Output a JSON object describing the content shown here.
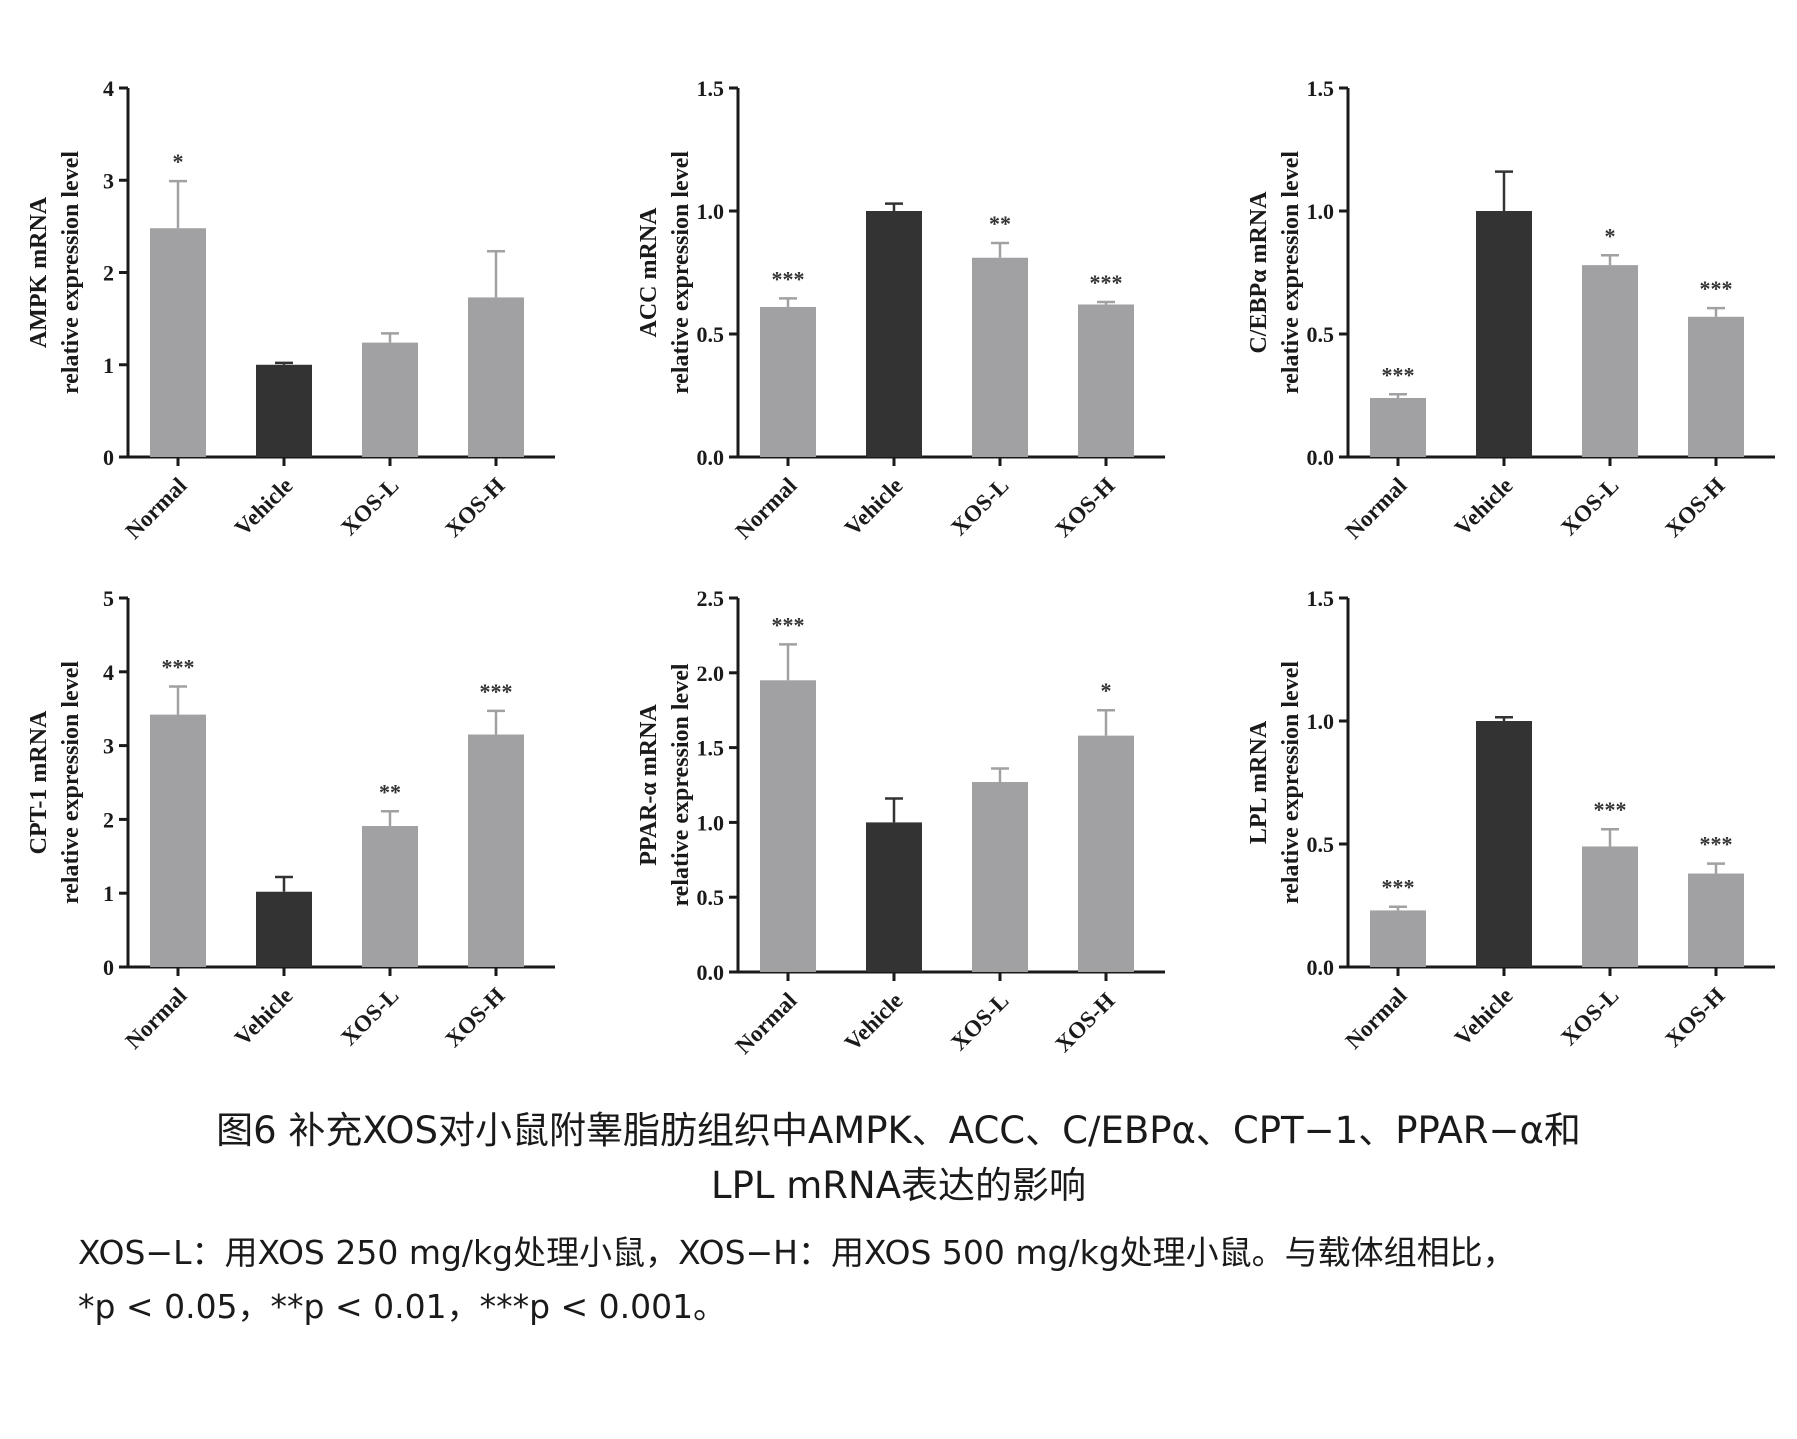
{
  "chart_data": [
    {
      "type": "bar",
      "categories": [
        "Normal",
        "Vehicle",
        "XOS-L",
        "XOS-H"
      ],
      "values": [
        2.48,
        1.0,
        1.24,
        1.73
      ],
      "errors": [
        0.51,
        0.02,
        0.1,
        0.5
      ],
      "significance": [
        "*",
        "",
        "",
        ""
      ],
      "ylabel_line1": "AMPK mRNA",
      "ylabel_line2": "relative expression level",
      "ylim": [
        0,
        4
      ],
      "yticks": [
        "0",
        "1",
        "2",
        "3",
        "4"
      ],
      "colors": [
        "#a1a1a3",
        "#333333",
        "#a1a1a3",
        "#a1a1a3"
      ]
    },
    {
      "type": "bar",
      "categories": [
        "Normal",
        "Vehicle",
        "XOS-L",
        "XOS-H"
      ],
      "values": [
        0.61,
        1.0,
        0.81,
        0.62
      ],
      "errors": [
        0.035,
        0.03,
        0.06,
        0.01
      ],
      "significance": [
        "***",
        "",
        "**",
        "***"
      ],
      "ylabel_line1": "ACC mRNA",
      "ylabel_line2": "relative expression level",
      "ylim": [
        0,
        1.5
      ],
      "yticks": [
        "0.0",
        "0.5",
        "1.0",
        "1.5"
      ],
      "colors": [
        "#a1a1a3",
        "#333333",
        "#a1a1a3",
        "#a1a1a3"
      ]
    },
    {
      "type": "bar",
      "categories": [
        "Normal",
        "Vehicle",
        "XOS-L",
        "XOS-H"
      ],
      "values": [
        0.24,
        1.0,
        0.78,
        0.57
      ],
      "errors": [
        0.015,
        0.16,
        0.04,
        0.035
      ],
      "significance": [
        "***",
        "",
        "*",
        "***"
      ],
      "ylabel_line1": "C/EBPα mRNA",
      "ylabel_line2": "relative expression level",
      "ylim": [
        0,
        1.5
      ],
      "yticks": [
        "0.0",
        "0.5",
        "1.0",
        "1.5"
      ],
      "colors": [
        "#a1a1a3",
        "#333333",
        "#a1a1a3",
        "#a1a1a3"
      ]
    },
    {
      "type": "bar",
      "categories": [
        "Normal",
        "Vehicle",
        "XOS-L",
        "XOS-H"
      ],
      "values": [
        3.42,
        1.02,
        1.91,
        3.15
      ],
      "errors": [
        0.38,
        0.2,
        0.2,
        0.32
      ],
      "significance": [
        "***",
        "",
        "**",
        "***"
      ],
      "ylabel_line1": "CPT-1 mRNA",
      "ylabel_line2": "relative expression level",
      "ylim": [
        0,
        5
      ],
      "yticks": [
        "0",
        "1",
        "2",
        "3",
        "4",
        "5"
      ],
      "colors": [
        "#a1a1a3",
        "#333333",
        "#a1a1a3",
        "#a1a1a3"
      ]
    },
    {
      "type": "bar",
      "categories": [
        "Normal",
        "Vehicle",
        "XOS-L",
        "XOS-H"
      ],
      "values": [
        1.95,
        1.0,
        1.27,
        1.58
      ],
      "errors": [
        0.24,
        0.16,
        0.09,
        0.17
      ],
      "significance": [
        "***",
        "",
        "",
        "*"
      ],
      "ylabel_line1": "PPAR-α mRNA",
      "ylabel_line2": "relative expression level",
      "ylim": [
        0,
        2.5
      ],
      "yticks": [
        "0.0",
        "0.5",
        "1.0",
        "1.5",
        "2.0",
        "2.5"
      ],
      "colors": [
        "#a1a1a3",
        "#333333",
        "#a1a1a3",
        "#a1a1a3"
      ]
    },
    {
      "type": "bar",
      "categories": [
        "Normal",
        "Vehicle",
        "XOS-L",
        "XOS-H"
      ],
      "values": [
        0.23,
        1.0,
        0.49,
        0.38
      ],
      "errors": [
        0.015,
        0.015,
        0.07,
        0.04
      ],
      "significance": [
        "***",
        "",
        "***",
        "***"
      ],
      "ylabel_line1": "LPL mRNA",
      "ylabel_line2": "relative expression level",
      "ylim": [
        0,
        1.5
      ],
      "yticks": [
        "0.0",
        "0.5",
        "1.0",
        "1.5"
      ],
      "colors": [
        "#a1a1a3",
        "#333333",
        "#a1a1a3",
        "#a1a1a3"
      ]
    }
  ],
  "caption": {
    "title_line1": "图6 补充XOS对小鼠附睾脂肪组织中AMPK、ACC、C/EBPα、CPT−1、PPAR−α和",
    "title_line2": "LPL mRNA表达的影响",
    "note_line1": "XOS−L：用XOS 250 mg/kg处理小鼠，XOS−H：用XOS 500 mg/kg处理小鼠。与载体组相比，",
    "note_line2": "*p < 0.05，**p < 0.01，***p < 0.001。"
  }
}
